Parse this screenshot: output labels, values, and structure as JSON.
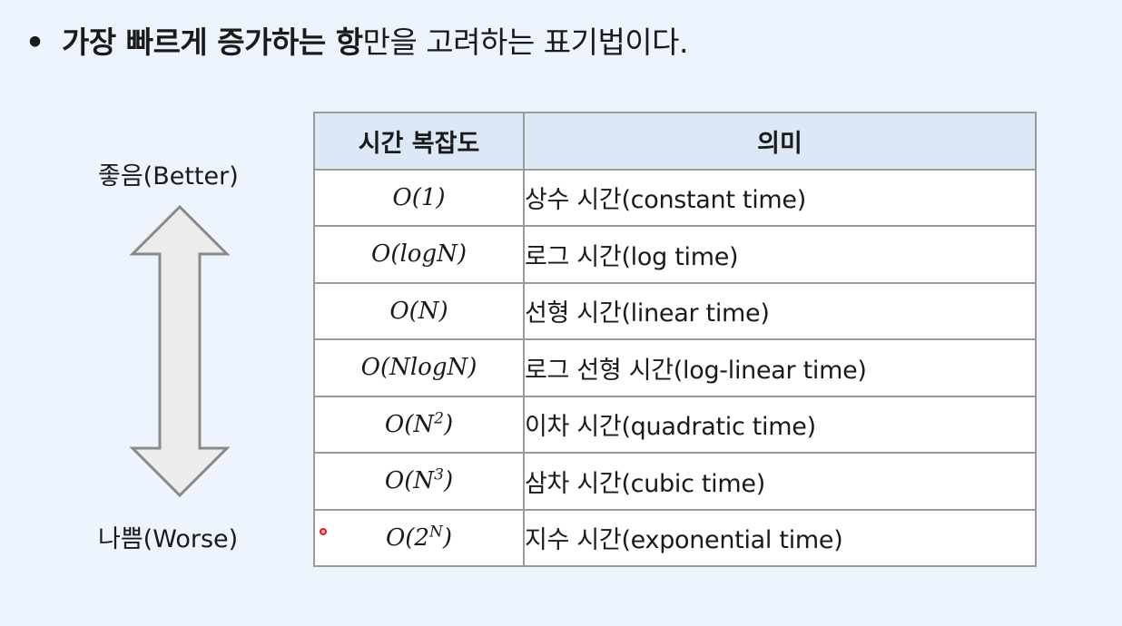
{
  "heading": {
    "bullet": "•",
    "bold_text": "가장 빠르게 증가하는 항",
    "rest_text": "만을 고려하는 표기법이다."
  },
  "axis": {
    "top_label": "좋음(Better)",
    "bottom_label": "나쁨(Worse)"
  },
  "table": {
    "headers": [
      "시간 복잡도",
      "의미"
    ],
    "rows": [
      {
        "notation": "O(1)",
        "meaning": "상수 시간(constant time)"
      },
      {
        "notation": "O(logN)",
        "meaning": "로그 시간(log time)"
      },
      {
        "notation": "O(N)",
        "meaning": "선형 시간(linear time)"
      },
      {
        "notation": "O(NlogN)",
        "meaning": "로그 선형 시간(log-linear time)"
      },
      {
        "notation_base": "O(N",
        "notation_sup": "2",
        "notation_close": ")",
        "meaning": "이차 시간(quadratic time)"
      },
      {
        "notation_base": "O(N",
        "notation_sup": "3",
        "notation_close": ")",
        "meaning": "삼차 시간(cubic time)"
      },
      {
        "notation_base": "O(2",
        "notation_sup": "N",
        "notation_close": ")",
        "meaning": "지수 시간(exponential time)"
      }
    ]
  },
  "colors": {
    "background": "#eef4fe",
    "header_fill": "#dce8f6",
    "border": "#9a9a9a",
    "arrow_fill": "#ececec",
    "arrow_stroke": "#8a8a8a",
    "cursor_dot": "#e02020"
  }
}
